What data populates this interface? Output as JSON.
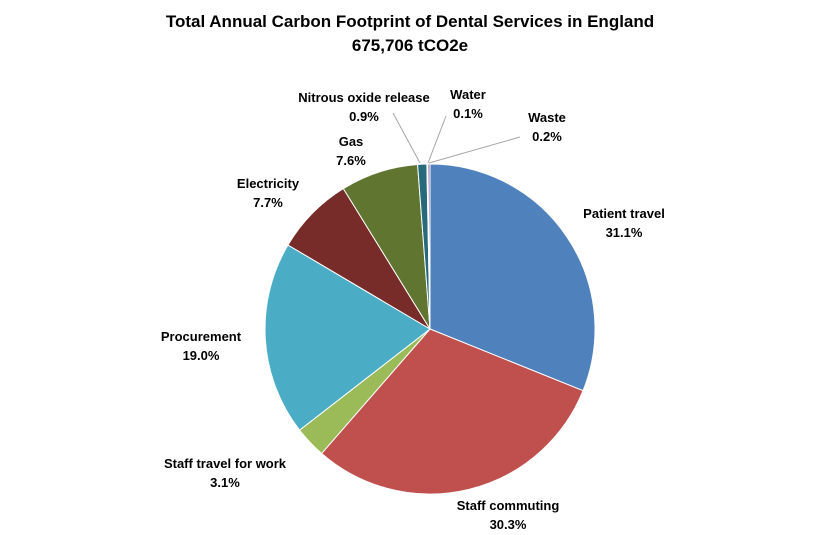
{
  "chart_data": {
    "type": "pie",
    "title": "Total Annual Carbon Footprint of Dental Services in England",
    "subtitle": "675,706 tCO2e",
    "slices": [
      {
        "label": "Patient travel",
        "value": 31.1,
        "value_label": "31.1%",
        "color": "#4F81BD"
      },
      {
        "label": "Staff commuting",
        "value": 30.3,
        "value_label": "30.3%",
        "color": "#C0504D"
      },
      {
        "label": "Staff travel for work",
        "value": 3.1,
        "value_label": "3.1%",
        "color": "#9BBB59"
      },
      {
        "label": "Procurement",
        "value": 19.0,
        "value_label": "19.0%",
        "color": "#4BACC6"
      },
      {
        "label": "Electricity",
        "value": 7.7,
        "value_label": "7.7%",
        "color": "#772C2A"
      },
      {
        "label": "Gas",
        "value": 7.6,
        "value_label": "7.6%",
        "color": "#5F7530"
      },
      {
        "label": "Nitrous oxide release",
        "value": 0.9,
        "value_label": "0.9%",
        "color": "#276A7C"
      },
      {
        "label": "Water",
        "value": 0.1,
        "value_label": "0.1%",
        "color": "#2C4D75"
      },
      {
        "label": "Waste",
        "value": 0.2,
        "value_label": "0.2%",
        "color": "#8064A2"
      }
    ]
  }
}
